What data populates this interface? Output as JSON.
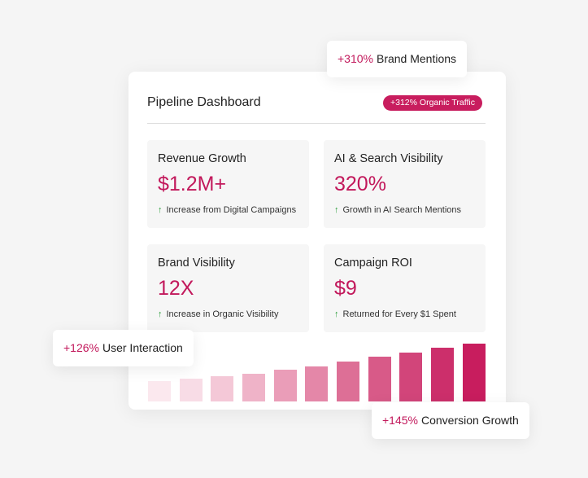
{
  "header": {
    "title": "Pipeline Dashboard",
    "badge": "+312% Organic Traffic"
  },
  "metrics": [
    {
      "label": "Revenue Growth",
      "value": "$1.2M+",
      "note": "Increase from Digital Campaigns"
    },
    {
      "label": "AI & Search Visibility",
      "value": "320%",
      "note": "Growth in AI Search Mentions"
    },
    {
      "label": "Brand Visibility",
      "value": "12X",
      "note": "Increase in Organic Visibility"
    },
    {
      "label": "Campaign ROI",
      "value": "$9",
      "note": "Returned for Every $1 Spent"
    }
  ],
  "callouts": [
    {
      "value": "+310%",
      "label": "Brand Mentions"
    },
    {
      "value": "+126%",
      "label": "User Interaction"
    },
    {
      "value": "+145%",
      "label": "Conversion Growth"
    }
  ]
}
